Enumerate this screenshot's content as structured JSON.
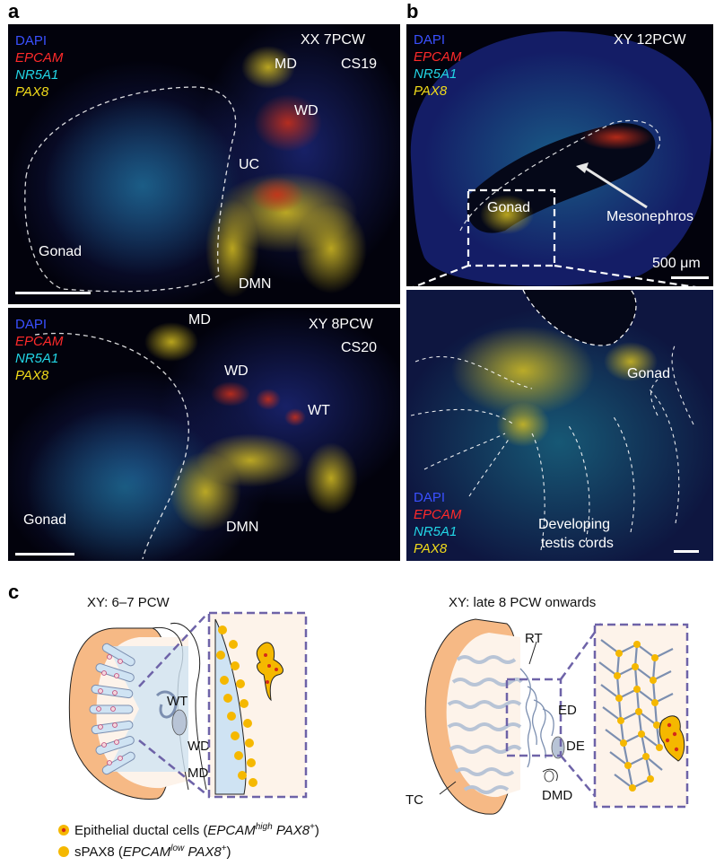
{
  "panels": {
    "a": {
      "letter": "a",
      "top": {
        "stage": "XX 7PCW",
        "carnegie": "CS19",
        "labels": {
          "md": "MD",
          "wd": "WD",
          "uc": "UC",
          "gonad": "Gonad",
          "dmn": "DMN"
        }
      },
      "bottom": {
        "stage": "XY 8PCW",
        "carnegie": "CS20",
        "labels": {
          "md": "MD",
          "wd": "WD",
          "wt": "WT",
          "gonad": "Gonad",
          "dmn": "DMN"
        }
      }
    },
    "b": {
      "letter": "b",
      "top": {
        "stage": "XY 12PCW",
        "labels": {
          "gonad": "Gonad",
          "mesonephros": "Mesonephros"
        },
        "scale": "500 μm"
      },
      "bottom": {
        "labels": {
          "gonad": "Gonad",
          "cords_line1": "Developing",
          "cords_line2": "testis cords"
        }
      }
    },
    "c": {
      "letter": "c",
      "left": {
        "title": "XY: 6–7 PCW",
        "labels": {
          "wt": "WT",
          "wd": "WD",
          "md": "MD"
        }
      },
      "right": {
        "title": "XY: late 8 PCW onwards",
        "labels": {
          "rt": "RT",
          "ed": "ED",
          "de": "DE",
          "tc": "TC",
          "dmd": "DMD"
        }
      },
      "key": {
        "epithelial_prefix": "Epithelial ductal cells (",
        "epithelial_gene1": "EPCAM",
        "epithelial_sup1": "high",
        "epithelial_gene2": " PAX8",
        "epithelial_sup2": "+",
        "epithelial_suffix": ")",
        "spax8_prefix": "sPAX8 (",
        "spax8_gene1": "EPCAM",
        "spax8_sup1": "low",
        "spax8_gene2": " PAX8",
        "spax8_sup2": "+",
        "spax8_suffix": ")"
      }
    }
  },
  "stains": {
    "dapi": "DAPI",
    "epcam": "EPCAM",
    "nr5a1": "NR5A1",
    "pax8": "PAX8"
  },
  "colors": {
    "dapi": "#3a50ff",
    "epcam": "#ff2a2a",
    "nr5a1": "#22d6e6",
    "pax8": "#f2dc1a",
    "gonad_cortex": "#f6b985",
    "gonad_core": "#fdf3ea",
    "duct_fill": "#cfe3f3",
    "tubule": "#b8c4d6",
    "box": "#6e63a8",
    "spax8_dot": "#f5b800",
    "epi_dot": "#d42a1a"
  }
}
